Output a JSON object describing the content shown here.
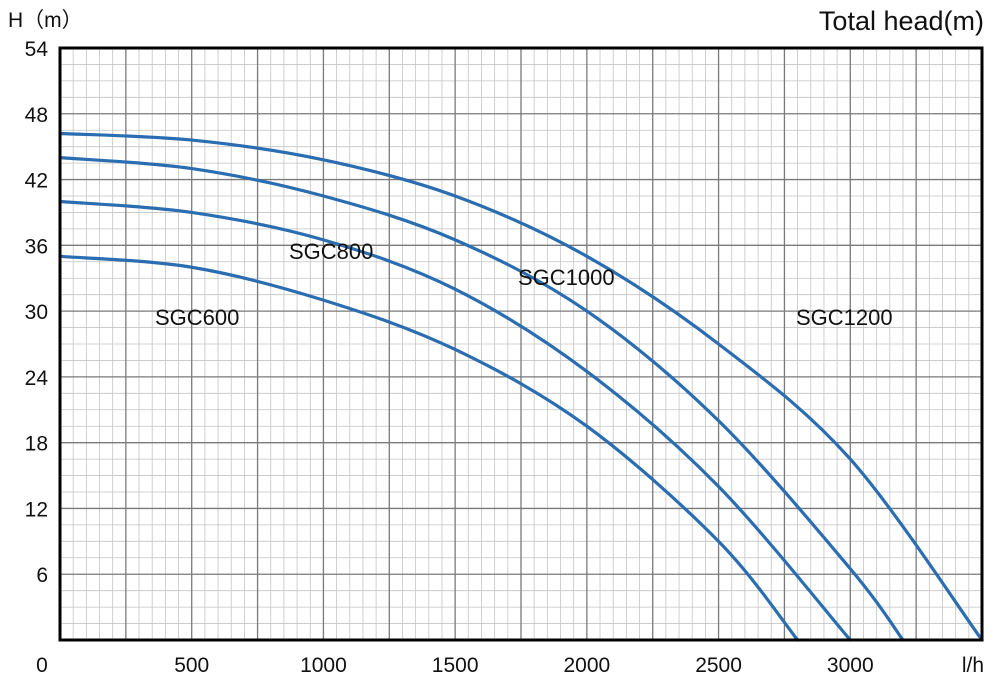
{
  "chart_data": {
    "type": "line",
    "title": "Total head(m)",
    "ylabel": "H（m）",
    "xlabel": "l/h",
    "x_ticks": [
      {
        "value": 0,
        "label": "0"
      },
      {
        "value": 500,
        "label": "500"
      },
      {
        "value": 1000,
        "label": "1000"
      },
      {
        "value": 1500,
        "label": "1500"
      },
      {
        "value": 2000,
        "label": "2000"
      },
      {
        "value": 2500,
        "label": "2500"
      },
      {
        "value": 3000,
        "label": "3000"
      }
    ],
    "y_ticks": [
      {
        "value": 6,
        "label": "6"
      },
      {
        "value": 12,
        "label": "12"
      },
      {
        "value": 18,
        "label": "18"
      },
      {
        "value": 24,
        "label": "24"
      },
      {
        "value": 30,
        "label": "30"
      },
      {
        "value": 36,
        "label": "36"
      },
      {
        "value": 42,
        "label": "42"
      },
      {
        "value": 48,
        "label": "48"
      },
      {
        "value": 54,
        "label": "54"
      }
    ],
    "xlim": [
      0,
      3500
    ],
    "ylim": [
      0,
      54
    ],
    "grid": true,
    "line_color": "#2a6db0",
    "series": [
      {
        "name": "SGC600",
        "x": [
          0,
          500,
          1000,
          1500,
          2000,
          2500,
          2800
        ],
        "y": [
          35,
          34,
          31,
          26.5,
          19.5,
          9,
          0
        ]
      },
      {
        "name": "SGC800",
        "x": [
          0,
          500,
          1000,
          1500,
          2000,
          2500,
          3000
        ],
        "y": [
          40,
          39,
          36.5,
          32,
          24.5,
          14,
          0
        ]
      },
      {
        "name": "SGC1000",
        "x": [
          0,
          500,
          1000,
          1500,
          2000,
          2500,
          3000,
          3200
        ],
        "y": [
          44,
          43,
          40.5,
          36.5,
          30,
          20,
          6.5,
          0
        ]
      },
      {
        "name": "SGC1200",
        "x": [
          0,
          500,
          1000,
          1500,
          2000,
          2500,
          3000,
          3500
        ],
        "y": [
          46.2,
          45.6,
          43.8,
          40.5,
          35,
          27,
          16.5,
          0
        ]
      }
    ]
  }
}
